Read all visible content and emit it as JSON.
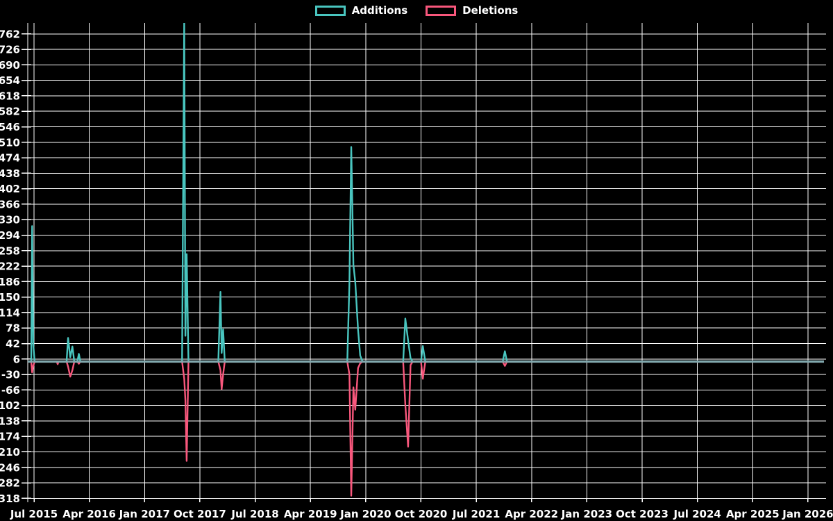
{
  "legend": {
    "items": [
      {
        "label": "Additions",
        "color": "#49c5bf"
      },
      {
        "label": "Deletions",
        "color": "#f8577c"
      }
    ]
  },
  "chart_data": {
    "type": "line",
    "title": "",
    "xlabel": "",
    "ylabel": "",
    "background_color": "#000000",
    "grid": true,
    "grid_color": "#ffffff",
    "legend_position": "top-center",
    "x_tick_labels": [
      "Jul 2015",
      "Apr 2016",
      "Jan 2017",
      "Oct 2017",
      "Jul 2018",
      "Apr 2019",
      "Jan 2020",
      "Oct 2020",
      "Jul 2021",
      "Apr 2022",
      "Jan 2023",
      "Oct 2023",
      "Jul 2024",
      "Apr 2025",
      "Jan 2026"
    ],
    "y_tick_labels": [
      762,
      726,
      690,
      654,
      618,
      582,
      546,
      510,
      474,
      438,
      402,
      366,
      330,
      294,
      258,
      222,
      186,
      150,
      114,
      78,
      42,
      6,
      -30,
      -66,
      -102,
      -138,
      -174,
      -210,
      -246,
      -282,
      -318
    ],
    "ylim": [
      -318,
      790
    ],
    "y_step": 36,
    "x_unit": "months since Jul 2015 tick",
    "series": [
      {
        "name": "Additions",
        "color": "#49c5bf"
      },
      {
        "name": "Deletions",
        "color": "#f8577c"
      }
    ],
    "baseline_color": "#86a6ac",
    "clipped_note": "Additions spike near Aug-Sep 2017 exceeds the 762 axis maximum and is clipped at the plot top",
    "points": [
      [
        -1.02,
        0,
        0
      ],
      [
        -0.45,
        0,
        0
      ],
      [
        -0.3,
        315,
        -25
      ],
      [
        -0.12,
        40,
        -10
      ],
      [
        0.1,
        0,
        0
      ],
      [
        3.7,
        0,
        0
      ],
      [
        3.85,
        0,
        -6
      ],
      [
        4.0,
        0,
        0
      ],
      [
        5.3,
        0,
        0
      ],
      [
        5.55,
        55,
        -12
      ],
      [
        5.9,
        10,
        -35
      ],
      [
        6.25,
        35,
        -20
      ],
      [
        6.55,
        0,
        0
      ],
      [
        7.05,
        0,
        0
      ],
      [
        7.3,
        18,
        -5
      ],
      [
        7.55,
        0,
        0
      ],
      [
        24.1,
        0,
        0
      ],
      [
        24.45,
        800,
        -40
      ],
      [
        24.65,
        60,
        -90
      ],
      [
        24.85,
        250,
        -231
      ],
      [
        25.15,
        0,
        0
      ],
      [
        30.0,
        0,
        0
      ],
      [
        30.35,
        162,
        -20
      ],
      [
        30.55,
        20,
        -64
      ],
      [
        30.78,
        75,
        -30
      ],
      [
        31.05,
        0,
        0
      ],
      [
        51.0,
        0,
        0
      ],
      [
        51.35,
        185,
        -30
      ],
      [
        51.65,
        499,
        -312
      ],
      [
        52.0,
        225,
        -60
      ],
      [
        52.3,
        185,
        -112
      ],
      [
        52.75,
        74,
        -15
      ],
      [
        53.1,
        14,
        -4
      ],
      [
        53.5,
        0,
        0
      ],
      [
        60.1,
        0,
        0
      ],
      [
        60.45,
        100,
        -100
      ],
      [
        60.9,
        49,
        -198
      ],
      [
        61.3,
        8,
        -8
      ],
      [
        61.65,
        0,
        0
      ],
      [
        63.0,
        0,
        0
      ],
      [
        63.3,
        36,
        -40
      ],
      [
        63.7,
        0,
        0
      ],
      [
        76.3,
        0,
        0
      ],
      [
        76.65,
        24,
        -10
      ],
      [
        77.0,
        0,
        0
      ],
      [
        128.6,
        0,
        0
      ]
    ]
  }
}
